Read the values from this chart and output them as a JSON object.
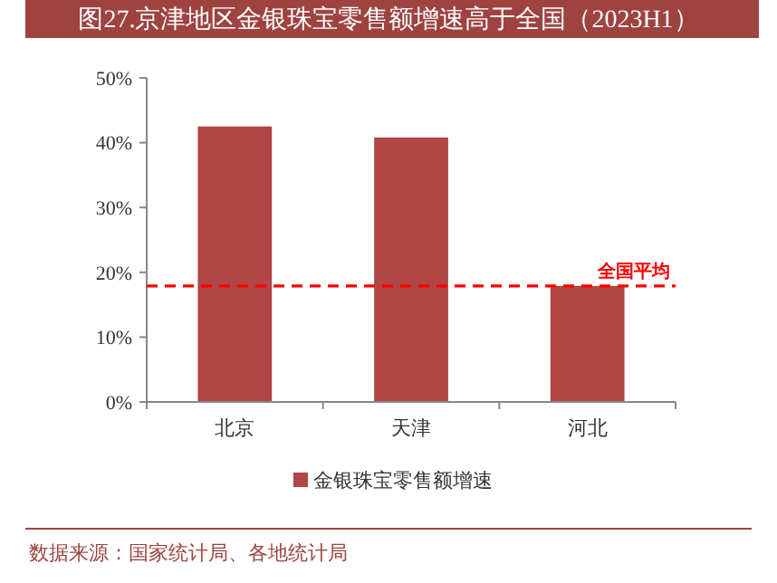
{
  "chart_data": {
    "type": "bar",
    "title": "图27.京津地区金银珠宝零售额增速高于全国（2023H1）",
    "categories": [
      "北京",
      "天津",
      "河北"
    ],
    "series": [
      {
        "name": "金银珠宝零售额增速",
        "color": "#b04645",
        "values": [
          42.5,
          40.8,
          17.9
        ]
      }
    ],
    "ylim": [
      0,
      50
    ],
    "yticks": [
      {
        "value": 0,
        "label": "0%"
      },
      {
        "value": 10,
        "label": "10%"
      },
      {
        "value": 20,
        "label": "20%"
      },
      {
        "value": 30,
        "label": "30%"
      },
      {
        "value": 40,
        "label": "40%"
      },
      {
        "value": 50,
        "label": "50%"
      }
    ],
    "ref_lines": [
      {
        "axis": "y",
        "value": 17.9,
        "label": "全国平均",
        "color": "#ff0000",
        "line_style": "dashed"
      }
    ],
    "legend": "bottom",
    "grid": false,
    "annotations": [
      "数据来源：国家统计局、各地统计局"
    ]
  }
}
